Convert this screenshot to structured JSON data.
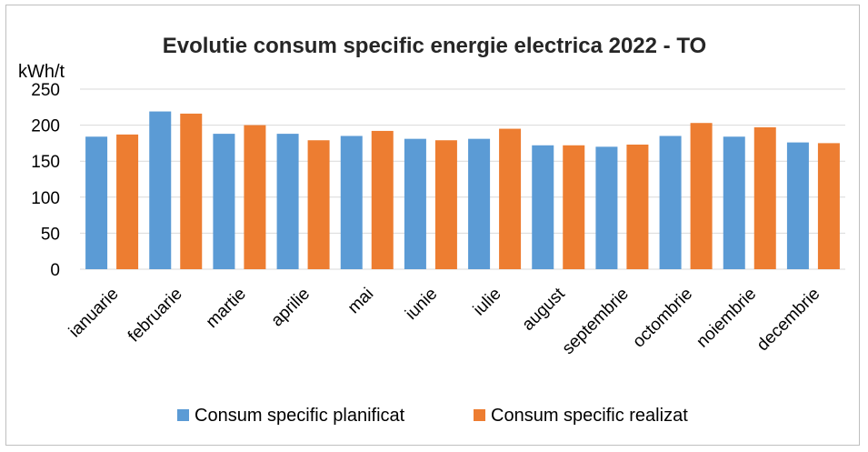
{
  "chart_data": {
    "type": "bar",
    "title": "Evolutie consum specific energie electrica 2022 - TO",
    "ylabel": "kWh/t",
    "ylim": [
      0,
      250
    ],
    "yticks": [
      "250",
      "200",
      "150",
      "100",
      "50",
      "0"
    ],
    "grid": true,
    "legend_position": "bottom",
    "categories": [
      "ianuarie",
      "februarie",
      "martie",
      "aprilie",
      "mai",
      "iunie",
      "iulie",
      "august",
      "septembrie",
      "octombrie",
      "noiembrie",
      "decembrie"
    ],
    "series": [
      {
        "name": "Consum specific planificat",
        "color": "#5b9bd5",
        "values": [
          184,
          219,
          188,
          188,
          185,
          181,
          181,
          172,
          170,
          185,
          184,
          176
        ]
      },
      {
        "name": "Consum specific realizat",
        "color": "#ed7d31",
        "values": [
          187,
          216,
          200,
          179,
          192,
          179,
          195,
          172,
          173,
          203,
          197,
          175
        ]
      }
    ]
  }
}
